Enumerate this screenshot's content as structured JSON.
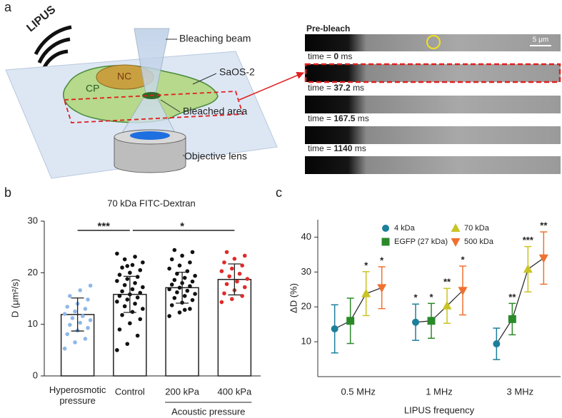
{
  "panel_a": {
    "panel": "a",
    "labels": {
      "lipus": "LIPUS",
      "nc": "NC",
      "cp": "CP",
      "beam": "Bleaching beam",
      "cell": "SaOS-2",
      "bleached": "Bleached area",
      "objective": "Objective lens"
    },
    "pre_bleach": "Pre-bleach",
    "scale_bar": "5 μm",
    "time_prefix": "time =",
    "time_unit": "ms",
    "times": [
      0,
      37.2,
      167.5,
      1140
    ]
  },
  "chart_data": [
    {
      "panel": "b",
      "type": "bar",
      "title": "70 kDa FITC-Dextran",
      "y_label": "D (μm²/s)",
      "categories": [
        "Hyperosmotic pressure",
        "Control",
        "200 kPa",
        "400 kPa"
      ],
      "values": [
        11.9,
        15.8,
        17.1,
        18.7
      ],
      "errors": [
        3.2,
        3.5,
        3.0,
        3.0
      ],
      "points": [
        [
          5.3,
          6.5,
          7.2,
          8.1,
          8.8,
          9.3,
          9.9,
          10.3,
          10.8,
          11.2,
          11.6,
          12.0,
          12.5,
          13.0,
          13.4,
          14.0,
          14.8,
          15.5,
          16.6,
          17.5
        ],
        [
          5.0,
          6.2,
          7.8,
          9.0,
          10.2,
          11.0,
          11.8,
          12.4,
          13.0,
          13.5,
          14.0,
          14.4,
          14.8,
          15.2,
          15.5,
          15.8,
          16.1,
          16.4,
          16.8,
          17.2,
          17.6,
          18.0,
          18.4,
          18.8,
          19.2,
          19.6,
          20.0,
          20.5,
          21.0,
          21.5,
          22.0,
          22.6,
          23.1,
          23.7,
          21.3
        ],
        [
          11.6,
          12.3,
          13.0,
          13.7,
          14.2,
          14.7,
          15.1,
          15.5,
          15.9,
          16.2,
          16.5,
          16.8,
          17.1,
          17.4,
          17.7,
          18.0,
          18.3,
          18.6,
          19.0,
          19.4,
          19.8,
          20.3,
          20.8,
          21.4,
          22.0,
          22.6,
          23.3,
          24.0,
          24.4,
          12.8
        ],
        [
          14.3,
          14.9,
          15.5,
          16.0,
          16.6,
          17.2,
          17.8,
          18.3,
          18.8,
          19.3,
          19.8,
          20.3,
          20.8,
          21.4,
          22.0,
          22.7,
          23.3,
          24.0
        ]
      ],
      "point_colors": [
        "#8fb8e8",
        "#111111",
        "#111111",
        "#e02a2a"
      ],
      "bar_color": "#ffffff",
      "ylim": [
        0,
        30
      ],
      "yticks": [
        0,
        10,
        20,
        30
      ],
      "annotations": [
        {
          "text": "***",
          "between": [
            "Hyperosmotic pressure",
            "Control"
          ]
        },
        {
          "text": "*",
          "between": [
            "Control",
            "400 kPa"
          ]
        }
      ],
      "group_label": {
        "text": "Acoustic pressure",
        "between": [
          "200 kPa",
          "400 kPa"
        ]
      }
    },
    {
      "panel": "c",
      "type": "line",
      "x_label": "LIPUS frequency",
      "y_label": "ΔD (%)",
      "categories": [
        "0.5 MHz",
        "1 MHz",
        "3 MHz"
      ],
      "series": [
        {
          "name": "4 kDa",
          "color": "#1c7f9c",
          "marker": "circle",
          "values": [
            13.7,
            15.6,
            9.4
          ],
          "errors": [
            6.9,
            5.2,
            4.5
          ],
          "significance": [
            null,
            "*",
            null
          ]
        },
        {
          "name": "EGFP (27 kDa)",
          "color": "#2a8a2a",
          "marker": "square",
          "values": [
            16.0,
            16.0,
            16.5
          ],
          "errors": [
            6.5,
            5.0,
            4.5
          ],
          "significance": [
            null,
            "*",
            "**"
          ]
        },
        {
          "name": "70 kDa",
          "color": "#c9c423",
          "marker": "triangle-up",
          "values": [
            23.8,
            20.3,
            30.8
          ],
          "errors": [
            6.3,
            5.0,
            6.5
          ],
          "significance": [
            "*",
            "**",
            "***"
          ]
        },
        {
          "name": "500 kDa",
          "color": "#f07030",
          "marker": "triangle-down",
          "values": [
            25.5,
            24.7,
            34.0
          ],
          "errors": [
            6.0,
            7.0,
            7.5
          ],
          "significance": [
            "*",
            "*",
            "**"
          ]
        }
      ],
      "ylim": [
        0,
        45
      ],
      "yticks": [
        10,
        20,
        30,
        40
      ],
      "line_color": "#222222"
    }
  ]
}
